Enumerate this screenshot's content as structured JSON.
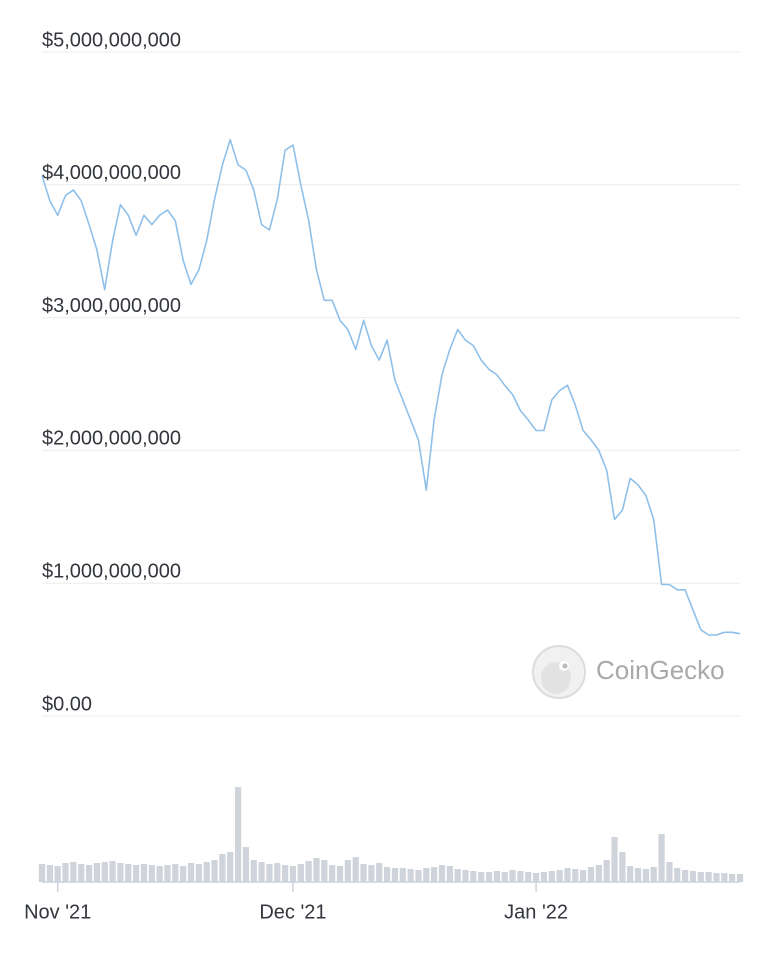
{
  "chart_data": {
    "type": "line",
    "watermark": "CoinGecko",
    "categories": [
      null,
      null,
      "Nov '21",
      null,
      null,
      null,
      null,
      null,
      null,
      null,
      null,
      null,
      null,
      null,
      null,
      null,
      null,
      null,
      null,
      null,
      null,
      null,
      null,
      null,
      null,
      null,
      null,
      null,
      null,
      null,
      null,
      null,
      "Dec '21",
      null,
      null,
      null,
      null,
      null,
      null,
      null,
      null,
      null,
      null,
      null,
      null,
      null,
      null,
      null,
      null,
      null,
      null,
      null,
      null,
      null,
      null,
      null,
      null,
      null,
      null,
      null,
      null,
      null,
      null,
      "Jan '22",
      null,
      null,
      null,
      null,
      null,
      null,
      null,
      null,
      null,
      null,
      null,
      null,
      null,
      null,
      null,
      null,
      null,
      null,
      null,
      null,
      null,
      null,
      null,
      null,
      null,
      null
    ],
    "series": [
      {
        "color": "#8fc0ea",
        "values": [
          4070000000,
          3880000000,
          3770000000,
          3920000000,
          3960000000,
          3880000000,
          3700000000,
          3510000000,
          3210000000,
          3580000000,
          3850000000,
          3770000000,
          3620000000,
          3770000000,
          3700000000,
          3770000000,
          3810000000,
          3730000000,
          3430000000,
          3250000000,
          3360000000,
          3580000000,
          3890000000,
          4150000000,
          4340000000,
          4150000000,
          4110000000,
          3960000000,
          3700000000,
          3660000000,
          3890000000,
          4260000000,
          4300000000,
          4000000000,
          3730000000,
          3360000000,
          3130000000,
          3130000000,
          2980000000,
          2910000000,
          2760000000,
          2980000000,
          2790000000,
          2680000000,
          2830000000,
          2530000000,
          2380000000,
          2230000000,
          2080000000,
          1700000000,
          2230000000,
          2570000000,
          2760000000,
          2910000000,
          2830000000,
          2790000000,
          2680000000,
          2610000000,
          2570000000,
          2490000000,
          2420000000,
          2300000000,
          2230000000,
          2150000000,
          2150000000,
          2380000000,
          2450000000,
          2490000000,
          2340000000,
          2150000000,
          2080000000,
          2000000000,
          1850000000,
          1480000000,
          1550000000,
          1790000000,
          1740000000,
          1660000000,
          1480000000,
          990000000,
          990000000,
          950000000,
          950000000,
          800000000,
          650000000,
          610000000,
          610000000,
          630000000,
          630000000,
          620000000
        ]
      }
    ],
    "volume_color": "#cfd3da",
    "volume": [
      18,
      17,
      16,
      19,
      20,
      18,
      17,
      19,
      20,
      21,
      19,
      18,
      17,
      18,
      17,
      16,
      17,
      18,
      16,
      19,
      18,
      20,
      22,
      28,
      30,
      95,
      35,
      22,
      20,
      18,
      19,
      17,
      16,
      18,
      21,
      24,
      22,
      17,
      16,
      22,
      25,
      18,
      17,
      19,
      15,
      14,
      14,
      13,
      12,
      14,
      15,
      17,
      16,
      13,
      12,
      11,
      10,
      10,
      11,
      10,
      12,
      11,
      10,
      9,
      10,
      11,
      12,
      14,
      13,
      12,
      15,
      17,
      22,
      45,
      30,
      16,
      14,
      13,
      15,
      48,
      20,
      14,
      12,
      11,
      10,
      10,
      9,
      9,
      8,
      8
    ],
    "ylim": [
      0,
      5000000000
    ],
    "yticks": [
      {
        "value": 0,
        "label": "$0.00"
      },
      {
        "value": 1000000000,
        "label": "$1,000,000,000"
      },
      {
        "value": 2000000000,
        "label": "$2,000,000,000"
      },
      {
        "value": 3000000000,
        "label": "$3,000,000,000"
      },
      {
        "value": 4000000000,
        "label": "$4,000,000,000"
      },
      {
        "value": 5000000000,
        "label": "$5,000,000,000"
      }
    ],
    "grid": true
  }
}
